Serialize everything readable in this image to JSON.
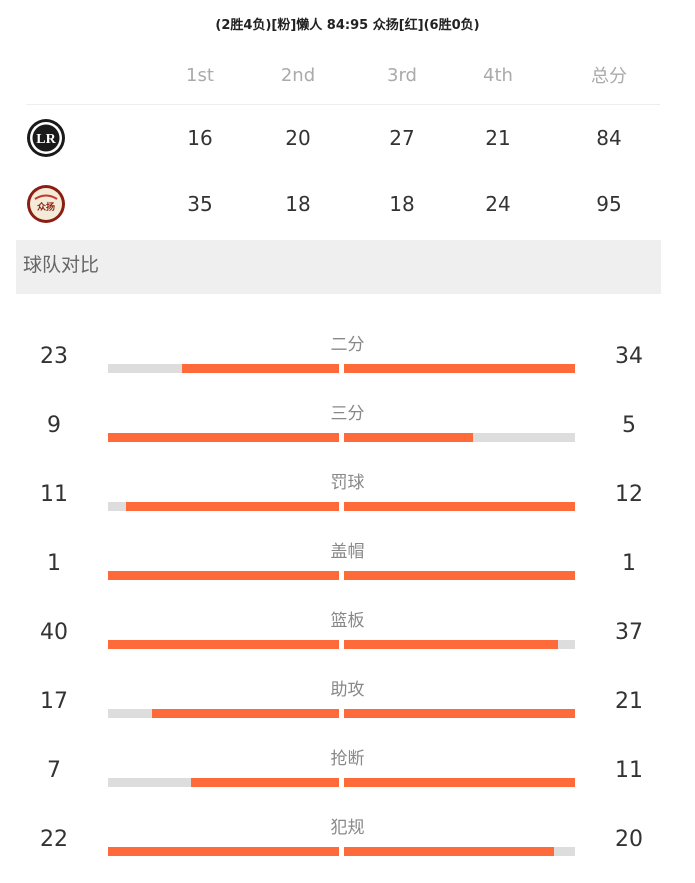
{
  "match": {
    "title": "(2胜4负)[粉]懒人 84:95 众扬[红](6胜0负)"
  },
  "scoreboard": {
    "headers": [
      "1st",
      "2nd",
      "3rd",
      "4th",
      "总分"
    ],
    "teams": [
      {
        "logo_icon": "lr-team-logo-icon",
        "logo_text": "LR",
        "scores": [
          "16",
          "20",
          "27",
          "21",
          "84"
        ]
      },
      {
        "logo_icon": "zhongyang-team-logo-icon",
        "logo_text": "众扬",
        "scores": [
          "35",
          "18",
          "18",
          "24",
          "95"
        ]
      }
    ]
  },
  "comparison": {
    "title": "球队对比",
    "stats": [
      {
        "label": "二分",
        "left": "23",
        "right": "34",
        "left_fill": 0.68,
        "right_fill": 1.0
      },
      {
        "label": "三分",
        "left": "9",
        "right": "5",
        "left_fill": 1.0,
        "right_fill": 0.56
      },
      {
        "label": "罚球",
        "left": "11",
        "right": "12",
        "left_fill": 0.92,
        "right_fill": 1.0
      },
      {
        "label": "盖帽",
        "left": "1",
        "right": "1",
        "left_fill": 1.0,
        "right_fill": 1.0
      },
      {
        "label": "篮板",
        "left": "40",
        "right": "37",
        "left_fill": 1.0,
        "right_fill": 0.925
      },
      {
        "label": "助攻",
        "left": "17",
        "right": "21",
        "left_fill": 0.81,
        "right_fill": 1.0
      },
      {
        "label": "抢断",
        "left": "7",
        "right": "11",
        "left_fill": 0.64,
        "right_fill": 1.0
      },
      {
        "label": "犯规",
        "left": "22",
        "right": "20",
        "left_fill": 1.0,
        "right_fill": 0.91
      }
    ]
  },
  "colors": {
    "accent": "#ff6a3a",
    "track": "#dddddd",
    "section_bg": "#efefef"
  }
}
